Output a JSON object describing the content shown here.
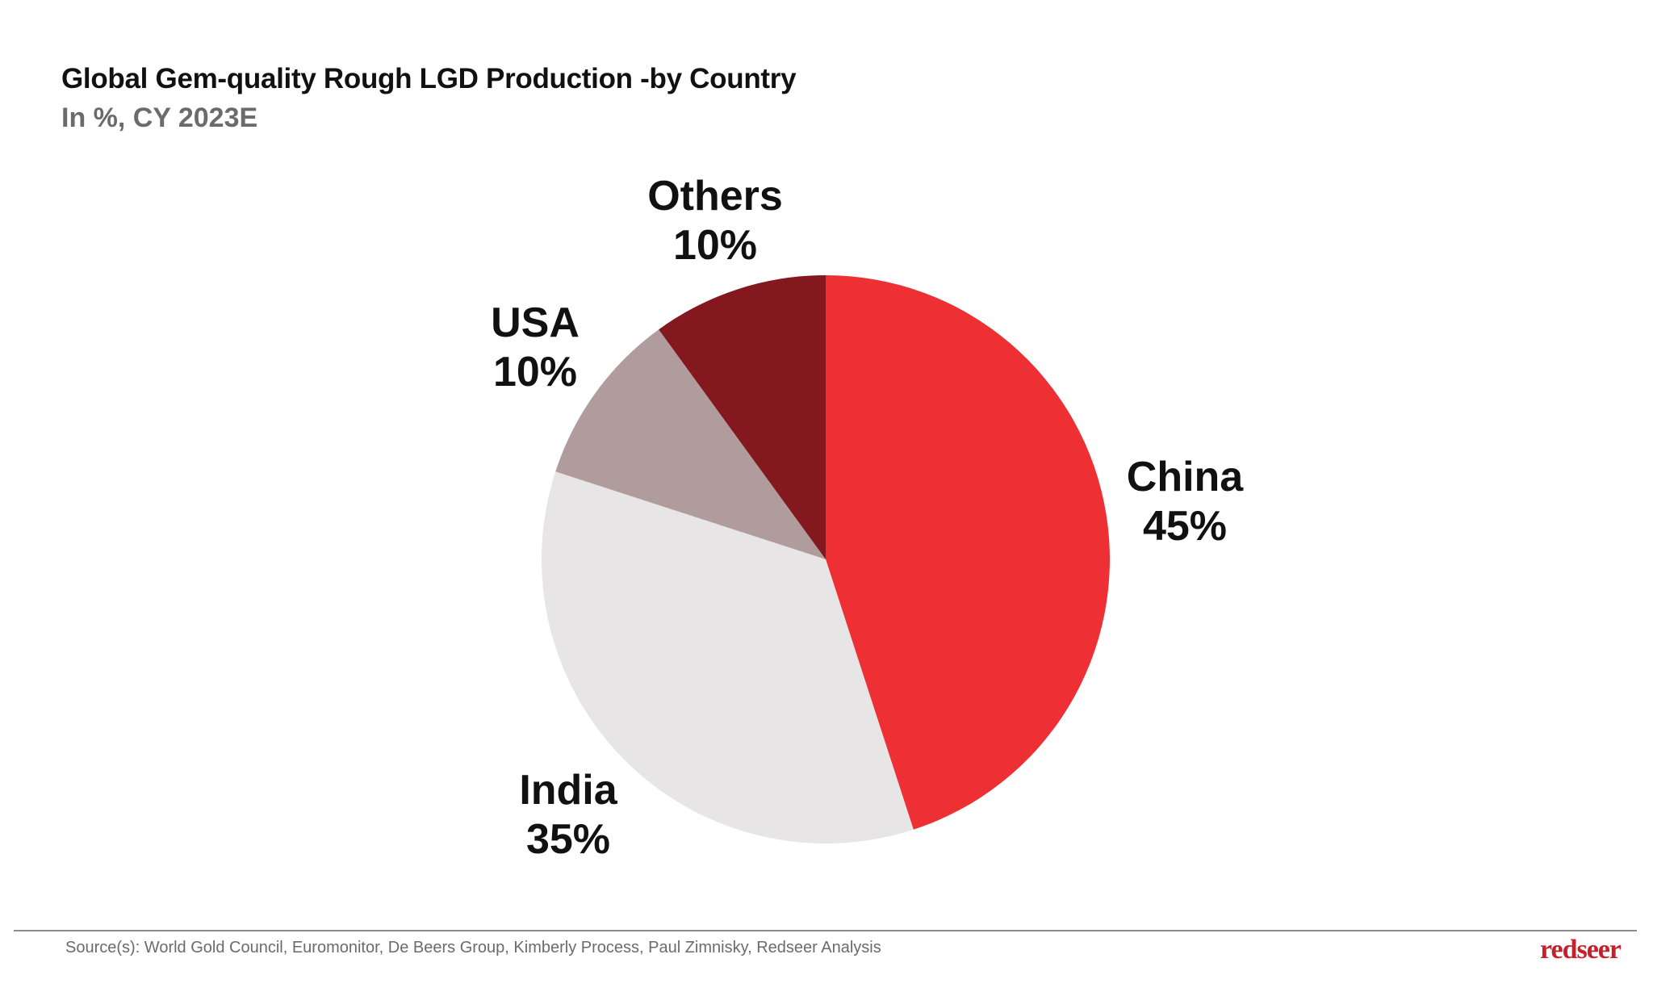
{
  "chart_data": {
    "type": "pie",
    "title": "Global Gem-quality Rough LGD Production -by Country",
    "subtitle": "In %, CY 2023E",
    "start_angle": "12 o'clock, clockwise",
    "slices": [
      {
        "label": "China",
        "value": 45,
        "value_label": "45%",
        "color": "#EE3034"
      },
      {
        "label": "India",
        "value": 35,
        "value_label": "35%",
        "color": "#E7E5E5"
      },
      {
        "label": "USA",
        "value": 10,
        "value_label": "10%",
        "color": "#B19C9D"
      },
      {
        "label": "Others",
        "value": 10,
        "value_label": "10%",
        "color": "#84181F"
      }
    ]
  },
  "footer": {
    "source": "Source(s): World Gold Council, Euromonitor, De Beers Group, Kimberly Process, Paul Zimnisky, Redseer Analysis",
    "logo": "redseer"
  }
}
